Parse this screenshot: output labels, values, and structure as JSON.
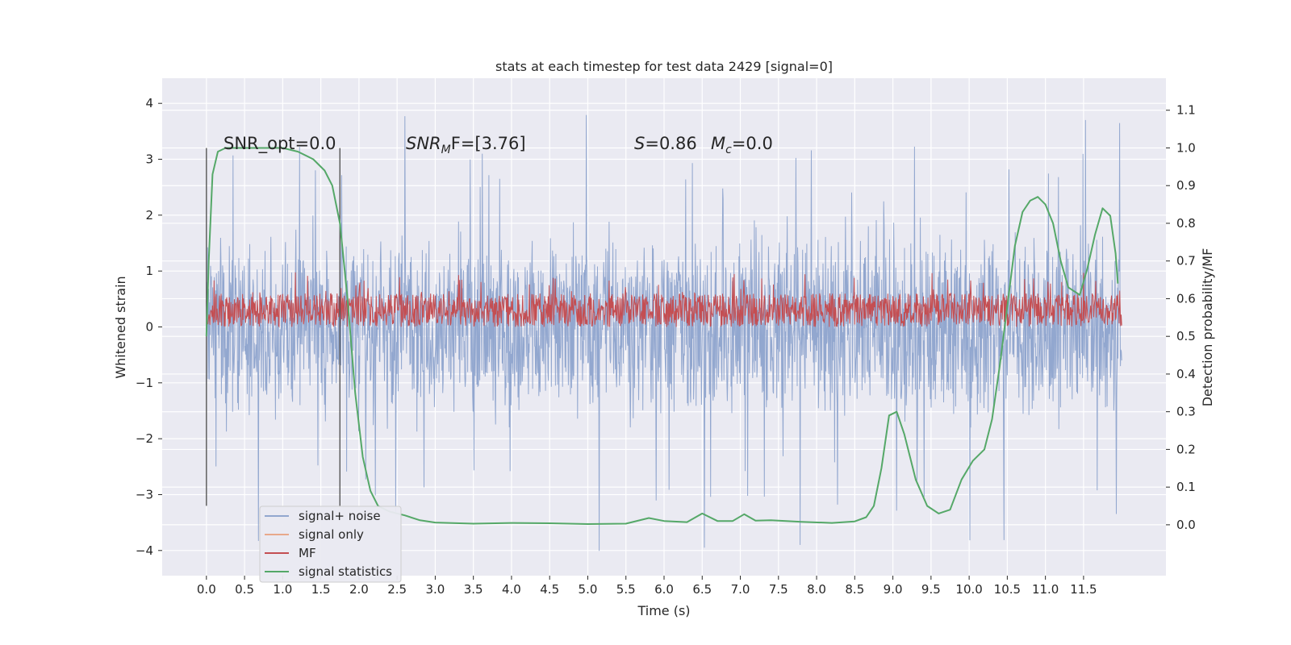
{
  "chart_data": {
    "type": "line",
    "title": "stats at each timestep for test data 2429 [signal=0]",
    "xlabel": "Time (s)",
    "ylabel": "Whitened strain",
    "y2label": "Detection probability/MF",
    "xlim": [
      -0.58,
      12.58
    ],
    "ylim": [
      -4.45,
      4.45
    ],
    "y2lim": [
      -0.135,
      1.185
    ],
    "xticks": [
      "0.0",
      "0.5",
      "1.0",
      "1.5",
      "2.0",
      "2.5",
      "3.0",
      "3.5",
      "4.0",
      "4.5",
      "5.0",
      "5.5",
      "6.0",
      "6.5",
      "7.0",
      "7.5",
      "8.0",
      "8.5",
      "9.0",
      "9.5",
      "10.0",
      "10.5",
      "11.0",
      "11.5"
    ],
    "yticks": [
      "4",
      "3",
      "2",
      "1",
      "0",
      "−1",
      "−2",
      "−3",
      "−4"
    ],
    "y2ticks": [
      "1.1",
      "1.0",
      "0.9",
      "0.8",
      "0.7",
      "0.6",
      "0.5",
      "0.4",
      "0.3",
      "0.2",
      "0.1",
      "0.0"
    ],
    "grid": true,
    "legend_position": "lower-left",
    "annotations": {
      "snr_opt": "SNR_opt=0.0",
      "snr_mf_sym": "SNR",
      "snr_mf_sub": "M",
      "snr_mf_rest": "F=[3.76]",
      "s_sym": "S",
      "s_rest": "=0.86",
      "mc_sym": "M",
      "mc_sub": "c",
      "mc_rest": "=0.0"
    },
    "vlines_x": [
      0.0,
      1.75
    ],
    "vline_ylim": [
      -3.2,
      3.2
    ],
    "signal_noise": {
      "name": "signal+ noise",
      "color": "#92a7cf",
      "t_range": [
        0.0,
        12.0
      ],
      "typical_range": [
        -1.9,
        2.0
      ],
      "max": 4.1,
      "min": -4.1
    },
    "signal_only": {
      "name": "signal only",
      "color": "#e8a98b"
    },
    "mf": {
      "name": "MF",
      "color": "#c44e52",
      "t_range": [
        0.0,
        12.0
      ],
      "range": [
        0.0,
        0.6
      ],
      "max": 0.98
    },
    "signal_statistics": {
      "name": "signal statistics",
      "color": "#55a868",
      "x": [
        0.0,
        0.03,
        0.08,
        0.15,
        0.25,
        0.5,
        1.0,
        1.2,
        1.4,
        1.55,
        1.65,
        1.75,
        1.85,
        1.95,
        2.05,
        2.15,
        2.25,
        2.4,
        2.6,
        2.8,
        3.0,
        3.5,
        4.0,
        4.5,
        5.0,
        5.5,
        5.8,
        6.0,
        6.3,
        6.5,
        6.7,
        6.9,
        7.05,
        7.2,
        7.4,
        7.8,
        8.2,
        8.5,
        8.65,
        8.75,
        8.85,
        8.95,
        9.05,
        9.15,
        9.3,
        9.45,
        9.6,
        9.75,
        9.9,
        10.05,
        10.2,
        10.3,
        10.4,
        10.5,
        10.6,
        10.7,
        10.8,
        10.9,
        11.0,
        11.1,
        11.2,
        11.3,
        11.45,
        11.55,
        11.65,
        11.75,
        11.85,
        11.92,
        11.95
      ],
      "y": [
        0.5,
        0.7,
        0.93,
        0.99,
        1.0,
        1.0,
        1.0,
        0.99,
        0.97,
        0.94,
        0.9,
        0.8,
        0.6,
        0.35,
        0.18,
        0.09,
        0.05,
        0.035,
        0.025,
        0.012,
        0.006,
        0.003,
        0.005,
        0.004,
        0.002,
        0.003,
        0.018,
        0.01,
        0.007,
        0.03,
        0.01,
        0.01,
        0.028,
        0.011,
        0.012,
        0.008,
        0.005,
        0.009,
        0.02,
        0.05,
        0.15,
        0.29,
        0.3,
        0.24,
        0.12,
        0.05,
        0.03,
        0.04,
        0.12,
        0.17,
        0.2,
        0.28,
        0.42,
        0.58,
        0.74,
        0.83,
        0.86,
        0.87,
        0.85,
        0.8,
        0.7,
        0.63,
        0.61,
        0.68,
        0.77,
        0.84,
        0.82,
        0.72,
        0.64
      ]
    }
  }
}
